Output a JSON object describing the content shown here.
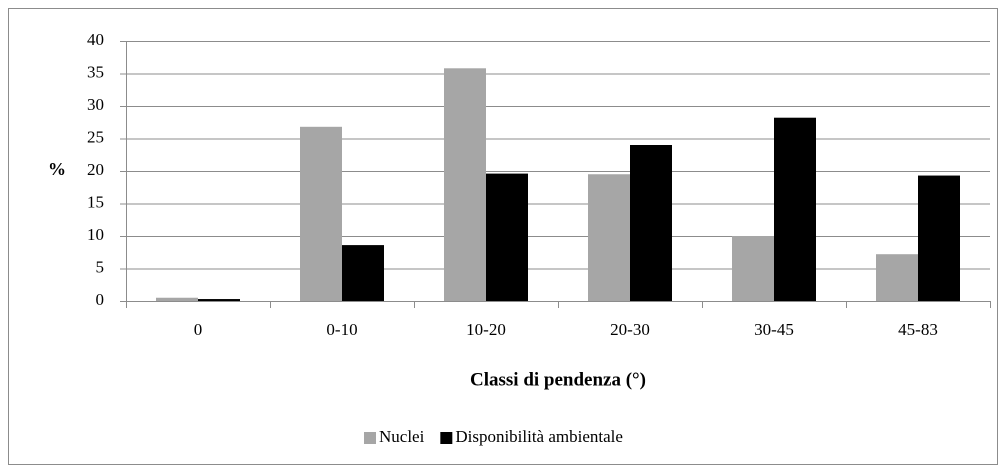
{
  "chart_data": {
    "type": "bar",
    "categories": [
      "0",
      "0-10",
      "10-20",
      "20-30",
      "30-45",
      "45-83"
    ],
    "series": [
      {
        "name": "Nuclei",
        "color": "#a6a6a6",
        "values": [
          0.5,
          26.8,
          35.8,
          19.5,
          10,
          7.2
        ]
      },
      {
        "name": "Disponibilità ambientale",
        "color": "#000000",
        "values": [
          0.3,
          8.6,
          19.6,
          24,
          28.2,
          19.3
        ]
      }
    ],
    "ylabel": "%",
    "xlabel": "Classi di pendenza (°)",
    "ylim": [
      0,
      40
    ],
    "yticks": [
      0,
      5,
      10,
      15,
      20,
      25,
      30,
      35,
      40
    ],
    "grid": true,
    "legend": "bottom"
  }
}
